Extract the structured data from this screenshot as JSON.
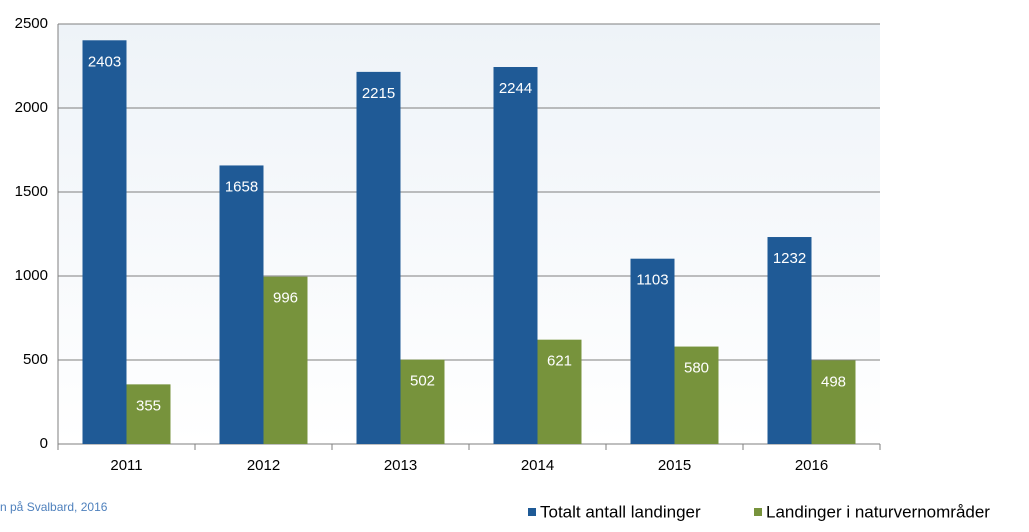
{
  "chart_data": {
    "type": "bar",
    "categories": [
      "2011",
      "2012",
      "2013",
      "2014",
      "2015",
      "2016"
    ],
    "series": [
      {
        "name": "Totalt antall landinger",
        "color": "#1f5a96",
        "values": [
          2403,
          1658,
          2215,
          2244,
          1103,
          1232
        ]
      },
      {
        "name": "Landinger i naturvernområder",
        "color": "#77933c",
        "values": [
          355,
          996,
          502,
          621,
          580,
          498
        ]
      }
    ],
    "ylim": [
      0,
      2500
    ],
    "yticks": [
      0,
      500,
      1000,
      1500,
      2000,
      2500
    ],
    "grid": true,
    "source": "n på Svalbard, 2016"
  }
}
